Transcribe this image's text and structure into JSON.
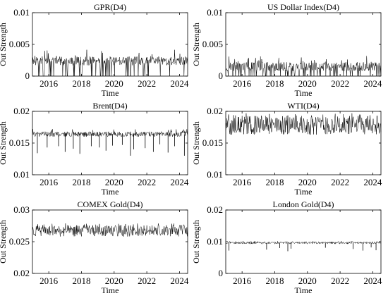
{
  "chart_data": [
    {
      "type": "line",
      "title": "GPR(D4)",
      "xlabel": "Time",
      "ylabel": "Out Strength",
      "xlim": [
        2015.0,
        2024.5
      ],
      "ylim": [
        0,
        0.01
      ],
      "x_ticks": [
        "2016",
        "2018",
        "2020",
        "2022",
        "2024"
      ],
      "y_ticks": [
        "0",
        "0.005",
        "0.01"
      ],
      "series": [
        {
          "band": [
            0.0017,
            0.0031
          ],
          "peak": 0.0042,
          "drop_rate": 0.12,
          "dips": []
        }
      ]
    },
    {
      "type": "line",
      "title": "US Dollar Index(D4)",
      "xlabel": "Time",
      "ylabel": "Out Strength",
      "xlim": [
        2015.0,
        2024.5
      ],
      "ylim": [
        0,
        0.01
      ],
      "x_ticks": [
        "2016",
        "2018",
        "2020",
        "2022",
        "2024"
      ],
      "y_ticks": [
        "0",
        "0.005",
        "0.01"
      ],
      "series": [
        {
          "band": [
            0.0008,
            0.0022
          ],
          "peak": 0.0032,
          "drop_rate": 0.16,
          "dips": []
        }
      ]
    },
    {
      "type": "line",
      "title": "Brent(D4)",
      "xlabel": "Time",
      "ylabel": "Out Strength",
      "xlim": [
        2015.0,
        2024.5
      ],
      "ylim": [
        0.01,
        0.02
      ],
      "x_ticks": [
        "2016",
        "2018",
        "2020",
        "2022",
        "2024"
      ],
      "y_ticks": [
        "0.01",
        "0.015",
        "0.02"
      ],
      "series": [
        {
          "band": [
            0.016,
            0.0168
          ],
          "peak": 0.0172,
          "drop_rate": 0,
          "dips": [
            {
              "x": 2015.3,
              "y": 0.0134
            },
            {
              "x": 2015.9,
              "y": 0.0143
            },
            {
              "x": 2016.6,
              "y": 0.0145
            },
            {
              "x": 2017.0,
              "y": 0.0136
            },
            {
              "x": 2017.5,
              "y": 0.0141
            },
            {
              "x": 2017.9,
              "y": 0.0133
            },
            {
              "x": 2018.6,
              "y": 0.0145
            },
            {
              "x": 2019.1,
              "y": 0.0143
            },
            {
              "x": 2019.5,
              "y": 0.0138
            },
            {
              "x": 2019.9,
              "y": 0.0146
            },
            {
              "x": 2020.5,
              "y": 0.0147
            },
            {
              "x": 2021.0,
              "y": 0.013
            },
            {
              "x": 2021.2,
              "y": 0.014
            },
            {
              "x": 2021.9,
              "y": 0.0142
            },
            {
              "x": 2022.4,
              "y": 0.0136
            },
            {
              "x": 2022.8,
              "y": 0.0148
            },
            {
              "x": 2023.3,
              "y": 0.0135
            },
            {
              "x": 2023.7,
              "y": 0.0145
            },
            {
              "x": 2024.3,
              "y": 0.013
            }
          ]
        }
      ]
    },
    {
      "type": "line",
      "title": "WTI(D4)",
      "xlabel": "Time",
      "ylabel": "Out Strength",
      "xlim": [
        2015.0,
        2024.5
      ],
      "ylim": [
        0.01,
        0.02
      ],
      "x_ticks": [
        "2016",
        "2018",
        "2020",
        "2022",
        "2024"
      ],
      "y_ticks": [
        "0.01",
        "0.015",
        "0.02"
      ],
      "series": [
        {
          "band": [
            0.0163,
            0.0193
          ],
          "peak": 0.0197,
          "drop_rate": 0,
          "dips": []
        }
      ]
    },
    {
      "type": "line",
      "title": "COMEX Gold(D4)",
      "xlabel": "Time",
      "ylabel": "Out Strength",
      "xlim": [
        2015.0,
        2024.5
      ],
      "ylim": [
        0.02,
        0.03
      ],
      "x_ticks": [
        "2016",
        "2018",
        "2020",
        "2022",
        "2024"
      ],
      "y_ticks": [
        "0.02",
        "0.025",
        "0.03"
      ],
      "series": [
        {
          "band": [
            0.0258,
            0.0276
          ],
          "peak": 0.0279,
          "drop_rate": 0,
          "dips": []
        }
      ]
    },
    {
      "type": "line",
      "title": "London Gold(D4)",
      "xlabel": "Time",
      "ylabel": "Out Strength",
      "xlim": [
        2015.0,
        2024.5
      ],
      "ylim": [
        0,
        0.02
      ],
      "x_ticks": [
        "2016",
        "2018",
        "2020",
        "2022",
        "2024"
      ],
      "y_ticks": [
        "0",
        "0.01",
        "0.02"
      ],
      "series": [
        {
          "band": [
            0.0093,
            0.01
          ],
          "peak": 0.0102,
          "drop_rate": 0,
          "dips": [
            {
              "x": 2015.2,
              "y": 0.0072
            },
            {
              "x": 2017.5,
              "y": 0.0075
            },
            {
              "x": 2018.3,
              "y": 0.008
            },
            {
              "x": 2018.8,
              "y": 0.007
            },
            {
              "x": 2019.0,
              "y": 0.0078
            },
            {
              "x": 2021.1,
              "y": 0.0081
            },
            {
              "x": 2022.8,
              "y": 0.0077
            },
            {
              "x": 2023.4,
              "y": 0.0072
            },
            {
              "x": 2023.9,
              "y": 0.0082
            },
            {
              "x": 2024.2,
              "y": 0.0073
            }
          ]
        }
      ]
    }
  ]
}
